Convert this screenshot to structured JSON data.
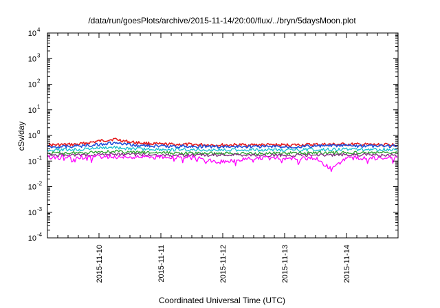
{
  "chart_data": {
    "type": "line",
    "title": "/data/run/goesPlots/archive/2015-11-14/20:00/flux/../bryn/5daysMoon.plot",
    "xlabel": "Coordinated Universal Time (UTC)",
    "ylabel": "cSv/day",
    "y_scale": "log",
    "ylim": [
      0.0001,
      10000
    ],
    "xlim": [
      "2015-11-09T04:00",
      "2015-11-14T20:00"
    ],
    "y_ticks": [
      {
        "base": "10",
        "exp": "-4",
        "value": 0.0001
      },
      {
        "base": "10",
        "exp": "-3",
        "value": 0.001
      },
      {
        "base": "10",
        "exp": "-2",
        "value": 0.01
      },
      {
        "base": "10",
        "exp": "-1",
        "value": 0.1
      },
      {
        "base": "10",
        "exp": "0",
        "value": 1
      },
      {
        "base": "10",
        "exp": "1",
        "value": 10
      },
      {
        "base": "10",
        "exp": "2",
        "value": 100
      },
      {
        "base": "10",
        "exp": "3",
        "value": 1000
      },
      {
        "base": "10",
        "exp": "4",
        "value": 10000
      }
    ],
    "x_ticks": [
      {
        "label": "2015-11-10",
        "value": "2015-11-10T00:00"
      },
      {
        "label": "2015-11-11",
        "value": "2015-11-11T00:00"
      },
      {
        "label": "2015-11-12",
        "value": "2015-11-12T00:00"
      },
      {
        "label": "2015-11-13",
        "value": "2015-11-13T00:00"
      },
      {
        "label": "2015-11-14",
        "value": "2015-11-14T00:00"
      }
    ],
    "grid": false,
    "legend": "none",
    "series": [
      {
        "color": "#e41a1c",
        "x": [
          "2015-11-09T04:00",
          "2015-11-09T16:00",
          "2015-11-10T00:00",
          "2015-11-10T06:00",
          "2015-11-10T12:00",
          "2015-11-11T00:00",
          "2015-11-11T12:00",
          "2015-11-12T00:00",
          "2015-11-12T12:00",
          "2015-11-13T00:00",
          "2015-11-13T12:00",
          "2015-11-14T00:00",
          "2015-11-14T12:00",
          "2015-11-14T20:00"
        ],
        "values": [
          0.42,
          0.45,
          0.6,
          0.72,
          0.55,
          0.45,
          0.44,
          0.42,
          0.43,
          0.42,
          0.44,
          0.45,
          0.43,
          0.44
        ]
      },
      {
        "color": "#1f4fd8",
        "x": [
          "2015-11-09T04:00",
          "2015-11-09T16:00",
          "2015-11-10T00:00",
          "2015-11-10T06:00",
          "2015-11-10T12:00",
          "2015-11-11T00:00",
          "2015-11-11T12:00",
          "2015-11-12T00:00",
          "2015-11-12T12:00",
          "2015-11-13T00:00",
          "2015-11-13T12:00",
          "2015-11-14T00:00",
          "2015-11-14T12:00",
          "2015-11-14T20:00"
        ],
        "values": [
          0.36,
          0.38,
          0.45,
          0.5,
          0.42,
          0.38,
          0.37,
          0.36,
          0.37,
          0.36,
          0.38,
          0.4,
          0.38,
          0.39
        ]
      },
      {
        "color": "#17becf",
        "x": [
          "2015-11-09T04:00",
          "2015-11-09T16:00",
          "2015-11-10T00:00",
          "2015-11-10T06:00",
          "2015-11-10T12:00",
          "2015-11-11T00:00",
          "2015-11-11T12:00",
          "2015-11-12T00:00",
          "2015-11-12T12:00",
          "2015-11-13T00:00",
          "2015-11-13T12:00",
          "2015-11-14T00:00",
          "2015-11-14T12:00",
          "2015-11-14T20:00"
        ],
        "values": [
          0.27,
          0.28,
          0.32,
          0.34,
          0.3,
          0.28,
          0.27,
          0.27,
          0.27,
          0.27,
          0.28,
          0.29,
          0.28,
          0.28
        ]
      },
      {
        "color": "#2ca02c",
        "x": [
          "2015-11-09T04:00",
          "2015-11-09T16:00",
          "2015-11-10T00:00",
          "2015-11-10T06:00",
          "2015-11-10T12:00",
          "2015-11-11T00:00",
          "2015-11-11T12:00",
          "2015-11-12T00:00",
          "2015-11-12T12:00",
          "2015-11-13T00:00",
          "2015-11-13T12:00",
          "2015-11-14T00:00",
          "2015-11-14T12:00",
          "2015-11-14T20:00"
        ],
        "values": [
          0.2,
          0.21,
          0.23,
          0.24,
          0.22,
          0.21,
          0.2,
          0.2,
          0.2,
          0.2,
          0.21,
          0.21,
          0.21,
          0.21
        ]
      },
      {
        "color": "#7f2a7f",
        "x": [
          "2015-11-09T04:00",
          "2015-11-09T16:00",
          "2015-11-10T00:00",
          "2015-11-10T06:00",
          "2015-11-10T12:00",
          "2015-11-11T00:00",
          "2015-11-11T12:00",
          "2015-11-12T00:00",
          "2015-11-12T12:00",
          "2015-11-13T00:00",
          "2015-11-13T12:00",
          "2015-11-14T00:00",
          "2015-11-14T12:00",
          "2015-11-14T20:00"
        ],
        "values": [
          0.17,
          0.17,
          0.18,
          0.19,
          0.18,
          0.17,
          0.17,
          0.17,
          0.17,
          0.17,
          0.17,
          0.18,
          0.17,
          0.17
        ]
      },
      {
        "color": "#ff00ff",
        "x": [
          "2015-11-09T04:00",
          "2015-11-09T16:00",
          "2015-11-10T00:00",
          "2015-11-10T06:00",
          "2015-11-10T12:00",
          "2015-11-11T00:00",
          "2015-11-11T12:00",
          "2015-11-11T22:00",
          "2015-11-12T12:00",
          "2015-11-13T00:00",
          "2015-11-13T12:00",
          "2015-11-13T18:00",
          "2015-11-14T00:00",
          "2015-11-14T12:00",
          "2015-11-14T20:00"
        ],
        "values": [
          0.14,
          0.14,
          0.15,
          0.15,
          0.14,
          0.14,
          0.14,
          0.09,
          0.13,
          0.13,
          0.13,
          0.05,
          0.13,
          0.13,
          0.13
        ]
      }
    ]
  }
}
